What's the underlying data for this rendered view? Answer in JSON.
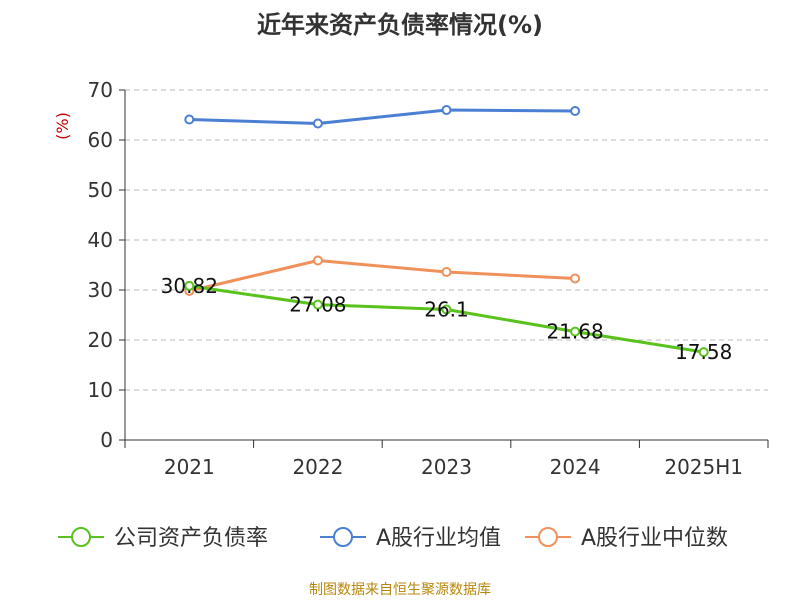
{
  "chart_data": {
    "type": "line",
    "title": "近年来资产负债率情况(%)",
    "ylabel": "(%)",
    "categories": [
      "2021",
      "2022",
      "2023",
      "2024",
      "2025H1"
    ],
    "ylim": [
      0,
      70
    ],
    "yticks": [
      0,
      10,
      20,
      30,
      40,
      50,
      60,
      70
    ],
    "grid": true,
    "legend_position": "bottom",
    "series": [
      {
        "name": "公司资产负债率",
        "color": "#5ac21d",
        "values": [
          30.82,
          27.08,
          26.1,
          21.68,
          17.58
        ],
        "labels": [
          "30.82",
          "27.08",
          "26.1",
          "21.68",
          "17.58"
        ]
      },
      {
        "name": "A股行业均值",
        "color": "#4a7fd4",
        "values": [
          64.1,
          63.3,
          66.0,
          65.8,
          null
        ]
      },
      {
        "name": "A股行业中位数",
        "color": "#f0905a",
        "values": [
          29.8,
          35.9,
          33.6,
          32.3,
          null
        ]
      }
    ]
  },
  "source": "制图数据来自恒生聚源数据库"
}
